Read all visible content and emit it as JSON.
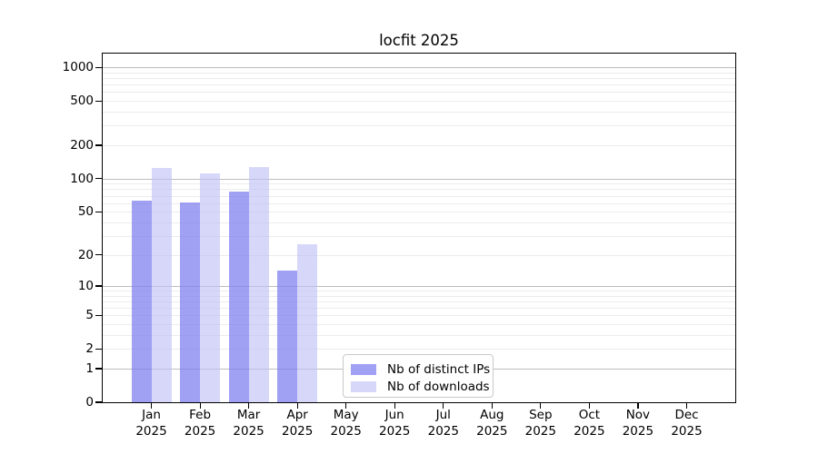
{
  "title": "locfit 2025",
  "legend": {
    "items": [
      {
        "label": "Nb of distinct IPs"
      },
      {
        "label": "Nb of downloads"
      }
    ]
  },
  "chart_data": {
    "type": "bar",
    "title": "locfit 2025",
    "categories": [
      "Jan 2025",
      "Feb 2025",
      "Mar 2025",
      "Apr 2025",
      "May 2025",
      "Jun 2025",
      "Jul 2025",
      "Aug 2025",
      "Sep 2025",
      "Oct 2025",
      "Nov 2025",
      "Dec 2025"
    ],
    "series": [
      {
        "name": "Nb of distinct IPs",
        "color": "rgba(125,125,240,0.72)",
        "solid_color": "#a3a3f1",
        "values": [
          63,
          61,
          76,
          14,
          0,
          0,
          0,
          0,
          0,
          0,
          0,
          0
        ]
      },
      {
        "name": "Nb of downloads",
        "color": "rgba(190,190,245,0.62)",
        "solid_color": "#d9d9f8",
        "values": [
          125,
          112,
          127,
          25,
          0,
          0,
          0,
          0,
          0,
          0,
          0,
          0
        ]
      }
    ],
    "yticks": [
      0,
      1,
      2,
      5,
      10,
      20,
      50,
      100,
      200,
      500,
      1000
    ],
    "ylim": [
      0,
      1330
    ],
    "scale": "log1p",
    "grid": {
      "major": [
        1,
        10,
        100,
        1000
      ],
      "minor_per_decade": [
        2,
        3,
        4,
        5,
        6,
        7,
        8,
        9
      ],
      "on": true
    },
    "legend_position": "lower-center-inside",
    "axis_color": "#000000",
    "major_grid_color": "#bdbdbd",
    "minor_grid_color": "#ececec"
  }
}
